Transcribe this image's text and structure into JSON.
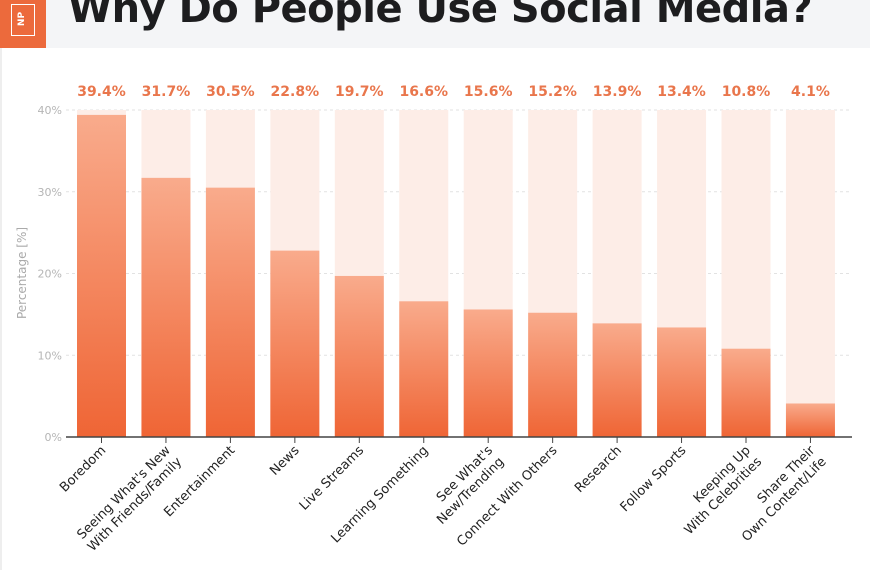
{
  "header": {
    "title": "Why Do People Use Social Media?",
    "logo": "NP"
  },
  "chart_data": {
    "type": "bar",
    "title": "Why Do People Use Social Media?",
    "ylabel": "Percentage [%]",
    "xlabel": "",
    "ylim": [
      0,
      40
    ],
    "yticks": [
      "0%",
      "10%",
      "20%",
      "30%",
      "40%"
    ],
    "grid": true,
    "categories": [
      "Boredom",
      "Seeing What's New|With Friends/Family",
      "Entertainment",
      "News",
      "Live Streams",
      "Learning Something",
      "See What's|New/Trending",
      "Connect With Others",
      "Research",
      "Follow Sports",
      "Keeping Up|With Celebrities",
      "Share Their|Own Content/Life"
    ],
    "values": [
      39.4,
      31.7,
      30.5,
      22.8,
      19.7,
      16.6,
      15.6,
      15.2,
      13.9,
      13.4,
      10.8,
      4.1
    ],
    "data_labels": [
      "39.4%",
      "31.7%",
      "30.5%",
      "22.8%",
      "19.7%",
      "16.6%",
      "15.6%",
      "15.2%",
      "13.9%",
      "13.4%",
      "10.8%",
      "4.1%"
    ],
    "colors": {
      "bar_top": "#f9ab8c",
      "bar_bottom": "#ef6535",
      "track": "#fdede7",
      "label": "#e9764c"
    }
  }
}
